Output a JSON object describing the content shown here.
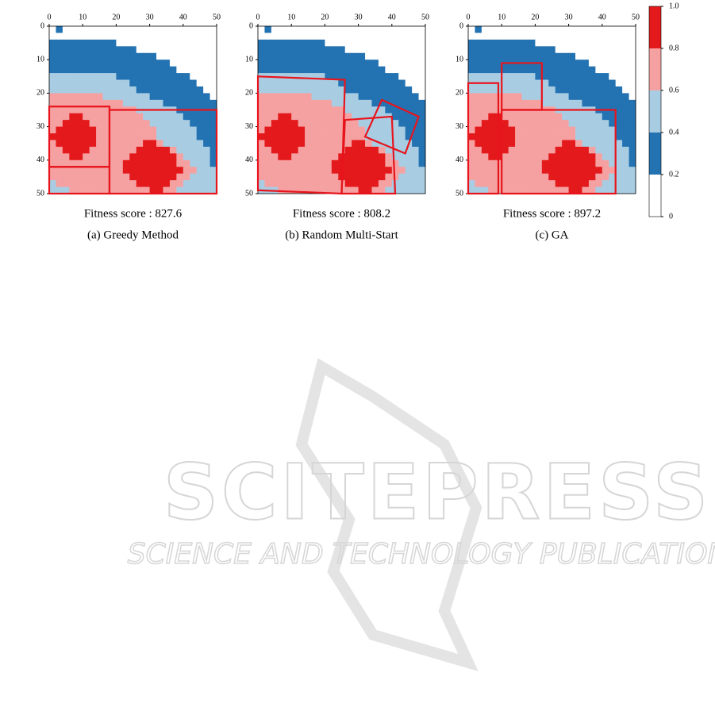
{
  "heatmap": {
    "xlim": [
      0,
      50
    ],
    "ylim": [
      0,
      50
    ],
    "xticks": [
      0,
      10,
      20,
      30,
      40,
      50
    ],
    "yticks": [
      0,
      10,
      20,
      30,
      40,
      50
    ],
    "rows": [
      "0100000000000000000000000",
      "0000000000000000000000000",
      "1111111111000000000000000",
      "1111111111111000000000000",
      "1111111111111111000000000",
      "1111111111111111110000000",
      "1111111111111111111000000",
      "2222222222111111111110000",
      "2222222222221111111111000",
      "2222222222222111111111100",
      "3333333322222221111111110",
      "3333333333322222211111111",
      "3333333333333222222111111",
      "3334433333333322222211111",
      "3344443333333332222221111",
      "3444444333333333222222111",
      "4444444333333333222222111",
      "3444444333333344322222211",
      "3344443333333444443222221",
      "3334433333334444444322221",
      "3333333333344444444332221",
      "3333333333344444444433222",
      "3333333333334444444332222",
      "2333333333333444443322222",
      "2223333333333334433222222"
    ]
  },
  "colorbar": {
    "ticks": [
      0,
      0.2,
      0.4,
      0.6,
      0.8,
      {
        "value": 1,
        "label": "1.0"
      }
    ],
    "colors": [
      "#ffffff",
      "#2372b2",
      "#a8cde3",
      "#f5a1a1",
      "#e3191c"
    ]
  },
  "box_color": "#e8141c",
  "panels": [
    {
      "score_label": "Fitness score : 827.6",
      "caption": "(a) Greedy Method",
      "boxes": [
        [
          [
            0,
            24
          ],
          [
            18,
            24
          ],
          [
            18,
            42
          ],
          [
            0,
            42
          ]
        ],
        [
          [
            0,
            42
          ],
          [
            18,
            42
          ],
          [
            18,
            50
          ],
          [
            0,
            50
          ]
        ],
        [
          [
            18,
            25
          ],
          [
            50,
            25
          ],
          [
            50,
            50
          ],
          [
            18,
            50
          ]
        ]
      ]
    },
    {
      "score_label": "Fitness score : 808.2",
      "caption": "(b) Random Multi-Start",
      "boxes": [
        [
          [
            0,
            15
          ],
          [
            26,
            16
          ],
          [
            25,
            50
          ],
          [
            0,
            49
          ]
        ],
        [
          [
            26,
            28
          ],
          [
            40,
            27
          ],
          [
            41,
            50
          ],
          [
            25,
            50
          ]
        ],
        [
          [
            37,
            22
          ],
          [
            48,
            27
          ],
          [
            44,
            38
          ],
          [
            32,
            33
          ]
        ]
      ]
    },
    {
      "score_label": "Fitness score : 897.2",
      "caption": "(c) GA",
      "boxes": [
        [
          [
            0,
            17
          ],
          [
            9,
            17
          ],
          [
            9,
            50
          ],
          [
            0,
            50
          ]
        ],
        [
          [
            10,
            11
          ],
          [
            22,
            11
          ],
          [
            22,
            25
          ],
          [
            10,
            25
          ]
        ],
        [
          [
            10,
            25
          ],
          [
            44,
            25
          ],
          [
            44,
            50
          ],
          [
            10,
            50
          ]
        ]
      ]
    }
  ],
  "watermark": {
    "title": "SCITEPRESS",
    "subtitle": "SCIENCE AND TECHNOLOGY PUBLICATIONS"
  }
}
